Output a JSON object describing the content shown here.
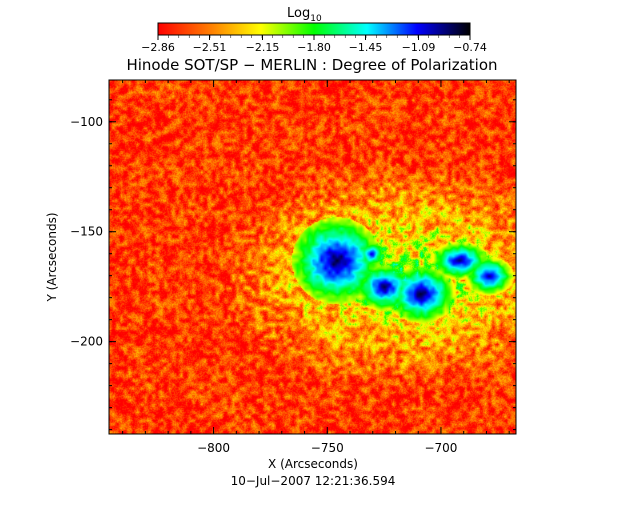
{
  "chart_data": {
    "type": "heatmap",
    "title": "Hinode SOT/SP − MERLIN : Degree of Polarization",
    "xlabel": "X (Arcseconds)",
    "ylabel": "Y (Arcseconds)",
    "timestamp": "10−Jul−2007 12:21:36.594",
    "colorbar": {
      "label_base": "Log",
      "label_sub": "10",
      "tick_labels": [
        "−2.86",
        "−2.51",
        "−2.15",
        "−1.80",
        "−1.45",
        "−1.09",
        "−0.74"
      ],
      "ticks": [
        -2.86,
        -2.51,
        -2.15,
        -1.8,
        -1.45,
        -1.09,
        -0.74
      ],
      "range": [
        -2.86,
        -0.74
      ],
      "colors": [
        "#ff0000",
        "#ff7f00",
        "#ffff00",
        "#00ff00",
        "#00ffff",
        "#0000ff",
        "#000000"
      ]
    },
    "xlim": [
      -846,
      -667
    ],
    "ylim": [
      -242,
      -81
    ],
    "xticks": [
      -800,
      -750,
      -700
    ],
    "xtick_labels": [
      "−800",
      "−750",
      "−700"
    ],
    "yticks": [
      -100,
      -150,
      -200
    ],
    "ytick_labels": [
      "−100",
      "−150",
      "−200"
    ],
    "background_level": -2.7,
    "features": [
      {
        "type": "umbra",
        "x": -746,
        "y": -163,
        "rx": 9,
        "ry": 9,
        "value": -0.78
      },
      {
        "type": "umbra",
        "x": -725,
        "y": -175,
        "rx": 6,
        "ry": 5,
        "value": -0.85
      },
      {
        "type": "umbra",
        "x": -709,
        "y": -178,
        "rx": 7,
        "ry": 6,
        "value": -0.82
      },
      {
        "type": "umbra",
        "x": -692,
        "y": -163,
        "rx": 6,
        "ry": 4,
        "value": -0.9
      },
      {
        "type": "umbra",
        "x": -679,
        "y": -170,
        "rx": 5,
        "ry": 4,
        "value": -0.9
      },
      {
        "type": "umbra",
        "x": -731,
        "y": -160,
        "rx": 3,
        "ry": 3,
        "value": -1.0
      }
    ]
  }
}
